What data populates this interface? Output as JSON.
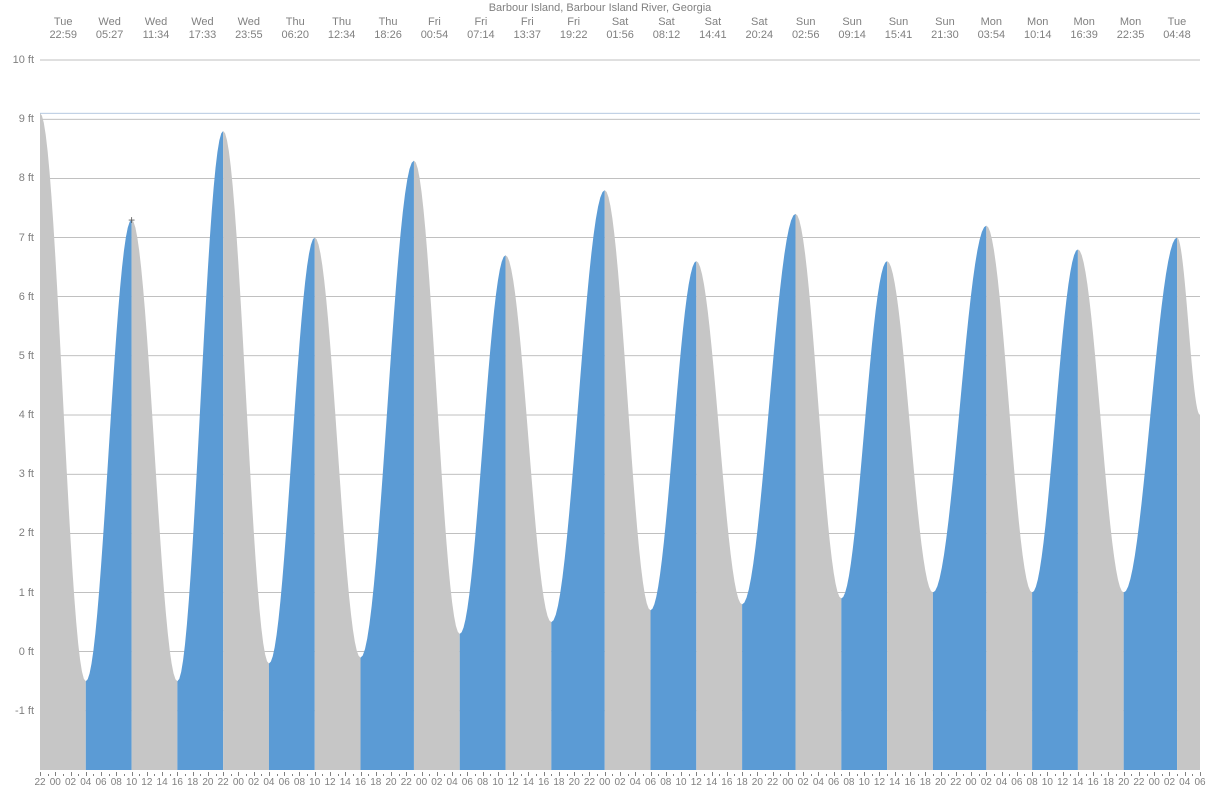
{
  "title": "Barbour Island, Barbour Island River, Georgia",
  "chart": {
    "type": "area",
    "background_color": "#ffffff",
    "grid_color": "#808080",
    "text_color": "#808080",
    "font_size_title": 11,
    "font_size_axis": 11,
    "font_size_xaxis": 10,
    "y": {
      "min": -2,
      "max": 10,
      "tick_step": 1,
      "unit": "ft",
      "labels": [
        "-1 ft",
        "0 ft",
        "1 ft",
        "2 ft",
        "3 ft",
        "4 ft",
        "5 ft",
        "6 ft",
        "7 ft",
        "8 ft",
        "9 ft",
        "10 ft"
      ],
      "label_values": [
        -1,
        0,
        1,
        2,
        3,
        4,
        5,
        6,
        7,
        8,
        9,
        10
      ]
    },
    "x": {
      "min": 0,
      "max": 152,
      "major_step": 2,
      "label_step": 2
    },
    "series": {
      "rising_color": "#5b9bd5",
      "falling_color": "#c6c6c6",
      "line_width": 1,
      "extrema": [
        {
          "h": 0,
          "v": 9.1,
          "type": "high"
        },
        {
          "h": 6,
          "v": -0.5,
          "type": "low"
        },
        {
          "h": 12,
          "v": 7.3,
          "type": "high"
        },
        {
          "h": 18,
          "v": -0.5,
          "type": "low"
        },
        {
          "h": 24,
          "v": 8.8,
          "type": "high"
        },
        {
          "h": 30,
          "v": -0.2,
          "type": "low"
        },
        {
          "h": 36,
          "v": 7.0,
          "type": "high"
        },
        {
          "h": 42,
          "v": -0.1,
          "type": "low"
        },
        {
          "h": 49,
          "v": 8.3,
          "type": "high"
        },
        {
          "h": 55,
          "v": 0.3,
          "type": "low"
        },
        {
          "h": 61,
          "v": 6.7,
          "type": "high"
        },
        {
          "h": 67,
          "v": 0.5,
          "type": "low"
        },
        {
          "h": 74,
          "v": 7.8,
          "type": "high"
        },
        {
          "h": 80,
          "v": 0.7,
          "type": "low"
        },
        {
          "h": 86,
          "v": 6.6,
          "type": "high"
        },
        {
          "h": 92,
          "v": 0.8,
          "type": "low"
        },
        {
          "h": 99,
          "v": 7.4,
          "type": "high"
        },
        {
          "h": 105,
          "v": 0.9,
          "type": "low"
        },
        {
          "h": 111,
          "v": 6.6,
          "type": "high"
        },
        {
          "h": 117,
          "v": 1.0,
          "type": "low"
        },
        {
          "h": 124,
          "v": 7.2,
          "type": "high"
        },
        {
          "h": 130,
          "v": 1.0,
          "type": "low"
        },
        {
          "h": 136,
          "v": 6.8,
          "type": "high"
        },
        {
          "h": 142,
          "v": 1.0,
          "type": "low"
        },
        {
          "h": 149,
          "v": 7.0,
          "type": "high"
        },
        {
          "h": 152,
          "v": 4.0,
          "type": "mid"
        }
      ]
    },
    "marker": {
      "h": 12,
      "v": 7.3,
      "symbol": "+"
    }
  },
  "header_labels": [
    {
      "day": "Tue",
      "time": "22:59"
    },
    {
      "day": "Wed",
      "time": "05:27"
    },
    {
      "day": "Wed",
      "time": "11:34"
    },
    {
      "day": "Wed",
      "time": "17:33"
    },
    {
      "day": "Wed",
      "time": "23:55"
    },
    {
      "day": "Thu",
      "time": "06:20"
    },
    {
      "day": "Thu",
      "time": "12:34"
    },
    {
      "day": "Thu",
      "time": "18:26"
    },
    {
      "day": "Fri",
      "time": "00:54"
    },
    {
      "day": "Fri",
      "time": "07:14"
    },
    {
      "day": "Fri",
      "time": "13:37"
    },
    {
      "day": "Fri",
      "time": "19:22"
    },
    {
      "day": "Sat",
      "time": "01:56"
    },
    {
      "day": "Sat",
      "time": "08:12"
    },
    {
      "day": "Sat",
      "time": "14:41"
    },
    {
      "day": "Sat",
      "time": "20:24"
    },
    {
      "day": "Sun",
      "time": "02:56"
    },
    {
      "day": "Sun",
      "time": "09:14"
    },
    {
      "day": "Sun",
      "time": "15:41"
    },
    {
      "day": "Sun",
      "time": "21:30"
    },
    {
      "day": "Mon",
      "time": "03:54"
    },
    {
      "day": "Mon",
      "time": "10:14"
    },
    {
      "day": "Mon",
      "time": "16:39"
    },
    {
      "day": "Mon",
      "time": "22:35"
    },
    {
      "day": "Tue",
      "time": "04:48"
    }
  ],
  "xaxis_hours": [
    "22",
    "00",
    "02",
    "04",
    "06",
    "08",
    "10",
    "12",
    "14",
    "16",
    "18",
    "20",
    "22",
    "00",
    "02",
    "04",
    "06",
    "08",
    "10",
    "12",
    "14",
    "16",
    "18",
    "20",
    "22",
    "00",
    "02",
    "04",
    "06",
    "08",
    "10",
    "12",
    "14",
    "16",
    "18",
    "20",
    "22",
    "00",
    "02",
    "04",
    "06",
    "08",
    "10",
    "12",
    "14",
    "16",
    "18",
    "20",
    "22",
    "00",
    "02",
    "04",
    "06",
    "08",
    "10",
    "12",
    "14",
    "16",
    "18",
    "20",
    "22",
    "00",
    "02",
    "04",
    "06",
    "08",
    "10",
    "12",
    "14",
    "16",
    "18",
    "20",
    "22",
    "00",
    "02",
    "04",
    "06"
  ]
}
